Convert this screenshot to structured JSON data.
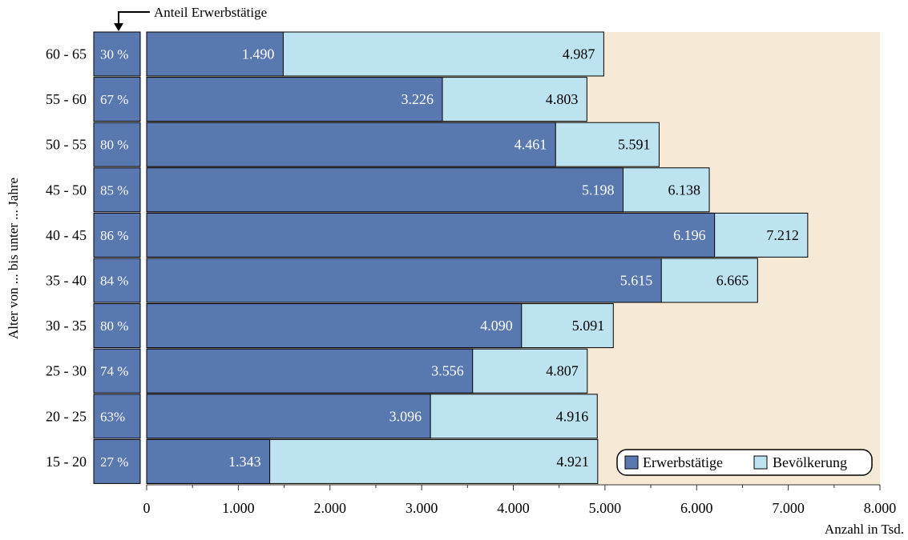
{
  "chart_data": {
    "type": "bar",
    "orientation": "horizontal",
    "stacking": "overlay",
    "categories": [
      "60 - 65",
      "55 - 60",
      "50 - 55",
      "45 - 50",
      "40 - 45",
      "35 - 40",
      "30 - 35",
      "25 - 30",
      "20 - 25",
      "15 - 20"
    ],
    "series": [
      {
        "name": "Erwerbstätige",
        "color": "#5a78b0",
        "values": [
          1490,
          3226,
          4461,
          5198,
          6196,
          5615,
          4090,
          3556,
          3096,
          1343
        ],
        "labels": [
          "1.490",
          "3.226",
          "4.461",
          "5.198",
          "6.196",
          "5.615",
          "4.090",
          "3.556",
          "3.096",
          "1.343"
        ]
      },
      {
        "name": "Bevölkerung",
        "color": "#bde2f0",
        "values": [
          4987,
          4803,
          5591,
          6138,
          7212,
          6665,
          5091,
          4807,
          4916,
          4921
        ],
        "labels": [
          "4.987",
          "4.803",
          "5.591",
          "6.138",
          "7.212",
          "6.665",
          "5.091",
          "4.807",
          "4.916",
          "4.921"
        ]
      }
    ],
    "share_label": "Anteil Erwerbstätige",
    "share_values": [
      "30 %",
      "67 %",
      "80 %",
      "85 %",
      "86 %",
      "84 %",
      "80 %",
      "74 %",
      "63%",
      "27 %"
    ],
    "xlabel": "Anzahl in Tsd.",
    "ylabel": "Alter von ... bis unter ... Jahre",
    "xlim": [
      0,
      8000
    ],
    "xticks": [
      0,
      1000,
      2000,
      3000,
      4000,
      5000,
      6000,
      7000,
      8000
    ],
    "xtick_labels": [
      "0",
      "1.000",
      "2.000",
      "3.000",
      "4.000",
      "5.000",
      "6.000",
      "7.000",
      "8.000"
    ],
    "background_color": "#f6ead6",
    "legend_position": "bottom-right",
    "grid": false
  }
}
